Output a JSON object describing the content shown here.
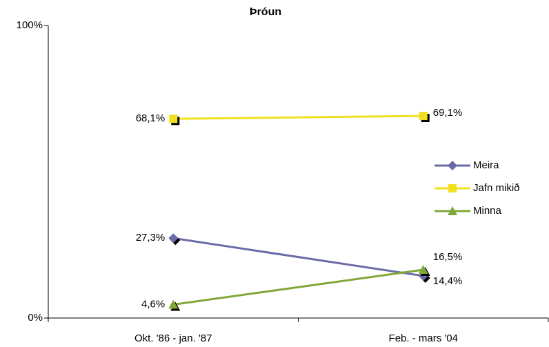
{
  "chart_data": {
    "type": "line",
    "title": "Þróun",
    "categories": [
      "Okt. '86 - jan. '87",
      "Feb. - mars '04"
    ],
    "series": [
      {
        "name": "Meira",
        "color": "#6b6ba8",
        "marker": "diamond",
        "values": [
          27.3,
          14.4
        ],
        "value_labels": [
          "27,3%",
          "14,4%"
        ]
      },
      {
        "name": "Jafn mikið",
        "color": "#f0e020",
        "marker": "square",
        "values": [
          68.1,
          69.1
        ],
        "value_labels": [
          "68,1%",
          "69,1%"
        ]
      },
      {
        "name": "Minna",
        "color": "#80a838",
        "marker": "triangle",
        "values": [
          4.6,
          16.5
        ],
        "value_labels": [
          "4,6%",
          "16,5%"
        ]
      }
    ],
    "ylim": [
      0,
      100
    ],
    "yticks": [
      {
        "value": 0,
        "label": "0%"
      },
      {
        "value": 100,
        "label": "100%"
      }
    ],
    "legend": "right"
  }
}
